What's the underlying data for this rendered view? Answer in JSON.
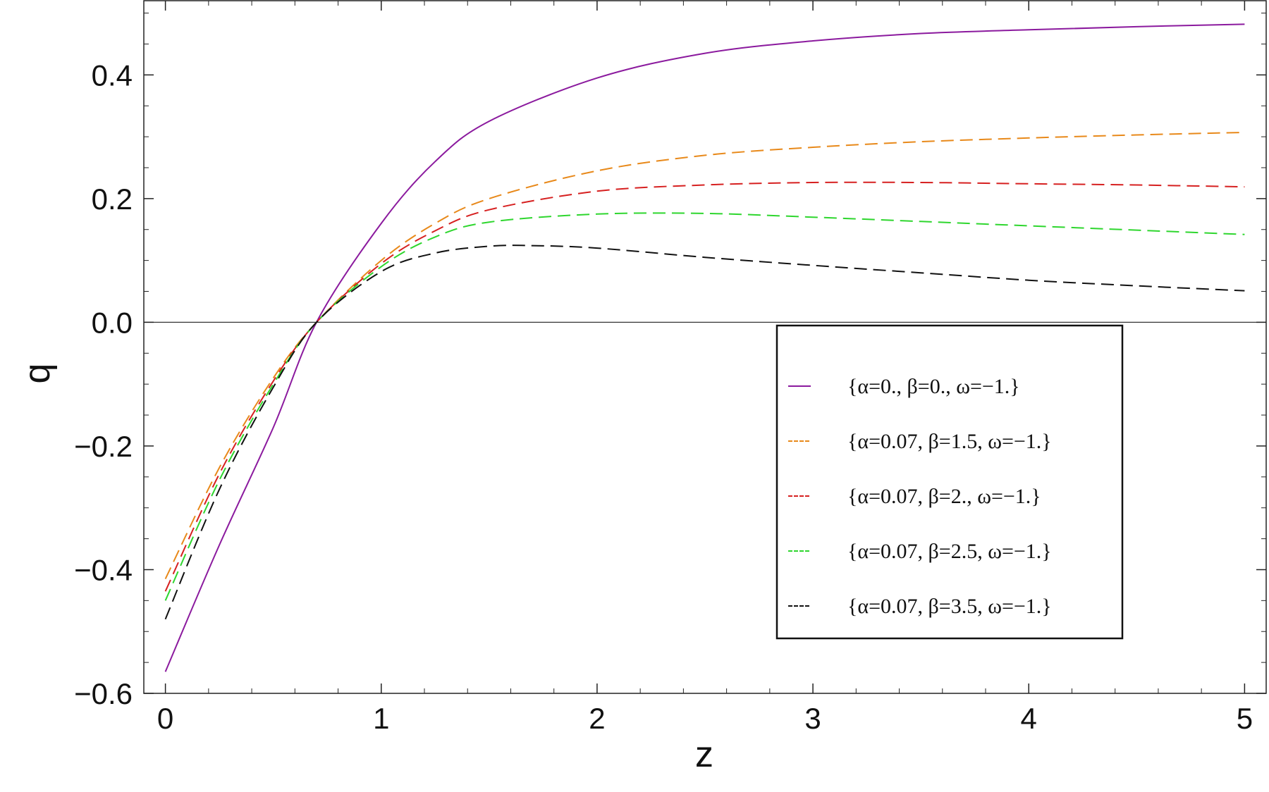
{
  "chart_data": {
    "type": "line",
    "title": "",
    "xlabel": "z",
    "ylabel": "q",
    "xlim": [
      -0.1,
      5.1
    ],
    "ylim": [
      -0.6,
      0.52
    ],
    "xticks": [
      {
        "value": 0,
        "label": "0"
      },
      {
        "value": 1,
        "label": "1"
      },
      {
        "value": 2,
        "label": "2"
      },
      {
        "value": 3,
        "label": "3"
      },
      {
        "value": 4,
        "label": "4"
      },
      {
        "value": 5,
        "label": "5"
      }
    ],
    "yticks": [
      {
        "value": -0.6,
        "label": "−0.6"
      },
      {
        "value": -0.4,
        "label": "−0.4"
      },
      {
        "value": -0.2,
        "label": "−0.2"
      },
      {
        "value": 0.0,
        "label": "0.0"
      },
      {
        "value": 0.2,
        "label": "0.2"
      },
      {
        "value": 0.4,
        "label": "0.4"
      }
    ],
    "grid": false,
    "zero_line": true,
    "legend_position": "right-center",
    "series": [
      {
        "name": "{α=0., β=0., ω=−1.}",
        "color": "#8b1a9e",
        "dashed": false,
        "x": [
          0,
          0.25,
          0.5,
          0.7,
          1.0,
          1.25,
          1.5,
          2.0,
          2.5,
          3.0,
          3.5,
          4.0,
          4.5,
          5.0
        ],
        "y": [
          -0.565,
          -0.36,
          -0.17,
          0.0,
          0.16,
          0.26,
          0.325,
          0.395,
          0.435,
          0.455,
          0.467,
          0.473,
          0.478,
          0.482
        ]
      },
      {
        "name": "{α=0.07, β=1.5, ω=−1.}",
        "color": "#e8891a",
        "dashed": true,
        "x": [
          0,
          0.25,
          0.5,
          0.7,
          1.0,
          1.25,
          1.5,
          2.0,
          2.5,
          3.0,
          3.5,
          4.0,
          4.5,
          5.0
        ],
        "y": [
          -0.415,
          -0.235,
          -0.09,
          0.0,
          0.1,
          0.16,
          0.2,
          0.245,
          0.27,
          0.283,
          0.292,
          0.298,
          0.303,
          0.307
        ]
      },
      {
        "name": "{α=0.07, β=2., ω=−1.}",
        "color": "#d62020",
        "dashed": true,
        "x": [
          0,
          0.25,
          0.5,
          0.7,
          1.0,
          1.25,
          1.5,
          2.0,
          2.5,
          3.0,
          3.5,
          4.0,
          4.5,
          5.0
        ],
        "y": [
          -0.435,
          -0.245,
          -0.095,
          0.0,
          0.095,
          0.148,
          0.182,
          0.212,
          0.222,
          0.226,
          0.226,
          0.224,
          0.222,
          0.219
        ]
      },
      {
        "name": "{α=0.07, β=2.5, ω=−1.}",
        "color": "#2ed62e",
        "dashed": true,
        "x": [
          0,
          0.25,
          0.5,
          0.7,
          1.0,
          1.25,
          1.5,
          2.0,
          2.5,
          3.0,
          3.5,
          4.0,
          4.5,
          5.0
        ],
        "y": [
          -0.45,
          -0.255,
          -0.1,
          0.0,
          0.09,
          0.138,
          0.162,
          0.175,
          0.176,
          0.17,
          0.163,
          0.156,
          0.149,
          0.142
        ]
      },
      {
        "name": "{α=0.07, β=3.5, ω=−1.}",
        "color": "#111111",
        "dashed": true,
        "x": [
          0,
          0.25,
          0.5,
          0.7,
          1.0,
          1.25,
          1.5,
          1.7,
          2.0,
          2.5,
          3.0,
          3.5,
          4.0,
          4.5,
          5.0
        ],
        "y": [
          -0.48,
          -0.27,
          -0.105,
          0.0,
          0.082,
          0.112,
          0.123,
          0.124,
          0.12,
          0.105,
          0.092,
          0.08,
          0.068,
          0.059,
          0.051
        ]
      }
    ]
  }
}
